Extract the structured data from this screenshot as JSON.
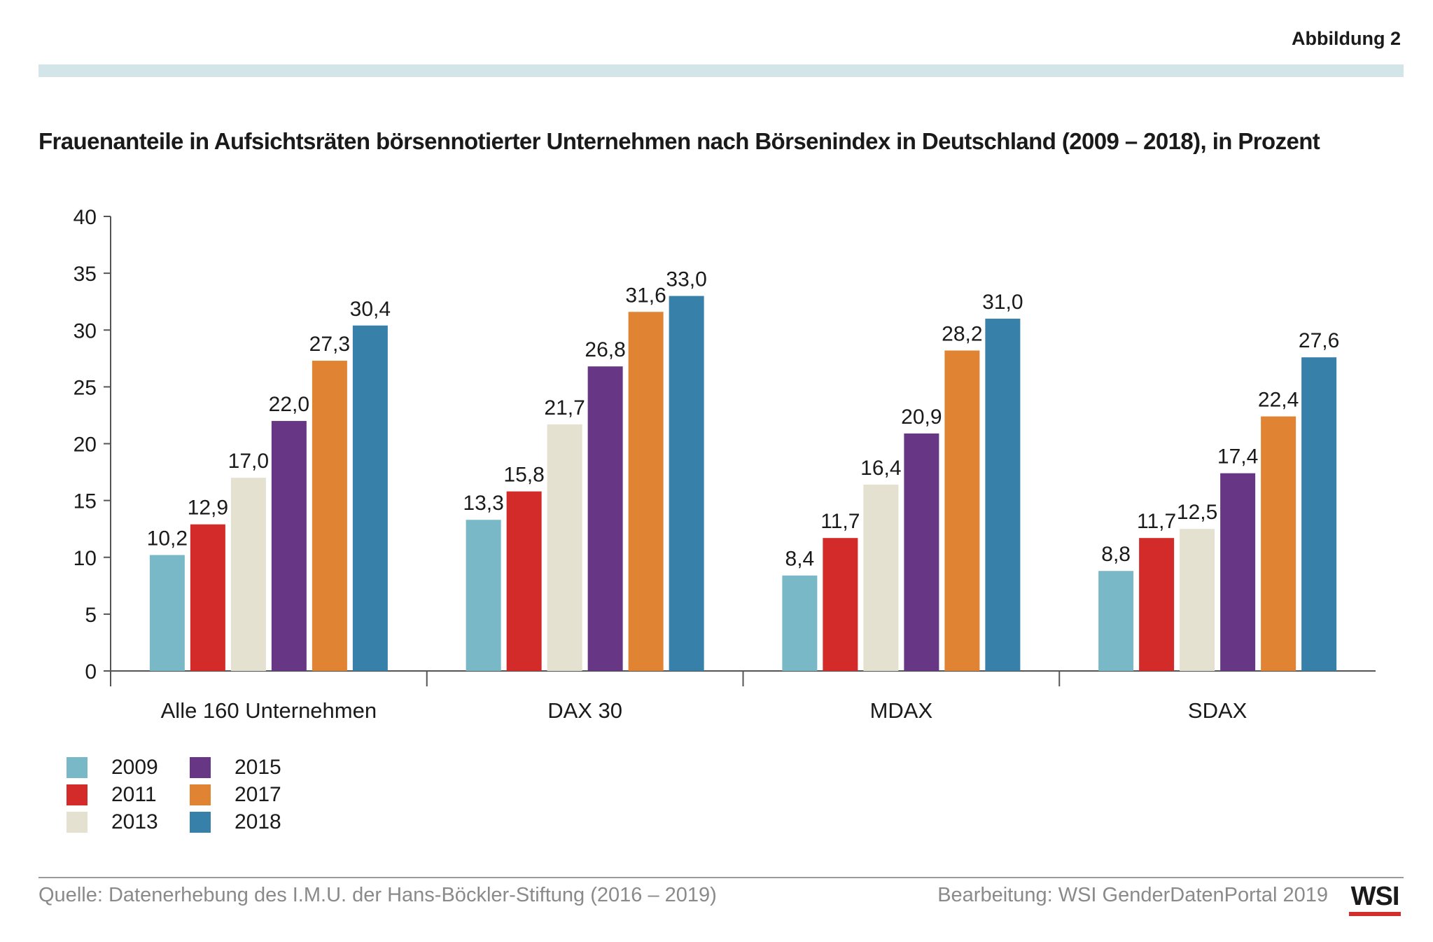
{
  "figure_label": "Abbildung 2",
  "colors": {
    "band": "#d4e5ea",
    "axis": "#555555",
    "logo_bar": "#d12e2e"
  },
  "chart_data": {
    "type": "bar",
    "title": "Frauenanteile in Aufsichtsräten börsennotierter Unternehmen nach Börsenindex in Deutschland (2009 – 2018), in Prozent",
    "xlabel": "",
    "ylabel": "",
    "categories": [
      "Alle 160 Unternehmen",
      "DAX 30",
      "MDAX",
      "SDAX"
    ],
    "ylim": [
      0,
      40
    ],
    "yticks": [
      "0",
      "5",
      "10",
      "15",
      "20",
      "25",
      "30",
      "35",
      "40"
    ],
    "grid": false,
    "legend_position": "bottom-left",
    "series": [
      {
        "name": "2009",
        "color": "#79b9c7",
        "values": [
          10.2,
          13.3,
          8.4,
          8.8
        ],
        "labels": [
          "10,2",
          "13,3",
          "8,4",
          "8,8"
        ]
      },
      {
        "name": "2011",
        "color": "#d22b29",
        "values": [
          12.9,
          15.8,
          11.7,
          11.7
        ],
        "labels": [
          "12,9",
          "15,8",
          "11,7",
          "11,7"
        ]
      },
      {
        "name": "2013",
        "color": "#e4e1d1",
        "values": [
          17.0,
          21.7,
          16.4,
          12.5
        ],
        "labels": [
          "17,0",
          "21,7",
          "16,4",
          "12,5"
        ]
      },
      {
        "name": "2015",
        "color": "#673785",
        "values": [
          22.0,
          26.8,
          20.9,
          17.4
        ],
        "labels": [
          "22,0",
          "26,8",
          "20,9",
          "17,4"
        ]
      },
      {
        "name": "2017",
        "color": "#e08332",
        "values": [
          27.3,
          31.6,
          28.2,
          22.4
        ],
        "labels": [
          "27,3",
          "31,6",
          "28,2",
          "22,4"
        ]
      },
      {
        "name": "2018",
        "color": "#3780a9",
        "values": [
          30.4,
          33.0,
          31.0,
          27.6
        ],
        "labels": [
          "30,4",
          "33,0",
          "31,0",
          "27,6"
        ]
      }
    ]
  },
  "footer": {
    "source": "Quelle: Datenerhebung des I.M.U. der Hans-Böckler-Stiftung (2016 – 2019)",
    "credit": "Bearbeitung: WSI GenderDatenPortal 2019",
    "logo_text": "WSI"
  }
}
